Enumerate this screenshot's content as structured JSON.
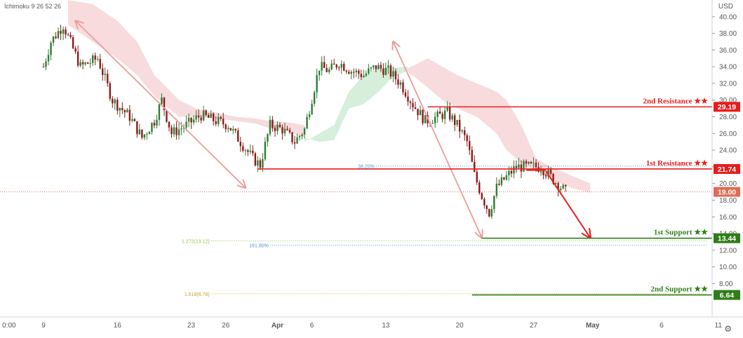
{
  "indicator_label": "Ichimoku 9 26 52 26",
  "currency": "USD",
  "icons": {
    "settings": "gear-icon"
  },
  "colors": {
    "resistance": "#e81c1c",
    "support": "#2e7d18",
    "current": "#e06b55",
    "arrow_pink": "#ef9a9a",
    "arrow_red": "#e81c1c",
    "cloud_bear": "#f3c7cb",
    "cloud_bull": "#bfe7c8",
    "candle_up": "#2e7d32",
    "candle_down": "#8b1a1a",
    "fib_green": "#8bc34a",
    "fib_blue": "#5b8fd6",
    "fib_gold": "#c9a227"
  },
  "chart_data": {
    "type": "candlestick",
    "y_axis": {
      "min": 4,
      "max": 42,
      "ticks": [
        8,
        10,
        12,
        14,
        16,
        18,
        20,
        22,
        24,
        26,
        28,
        30,
        32,
        34,
        36,
        38,
        40
      ],
      "tick_labels": [
        "8.00",
        "10.00",
        "12.00",
        "14.00",
        "16.00",
        "18.00",
        "20.00",
        "22.00",
        "24.00",
        "26.00",
        "28.00",
        "30.00",
        "32.00",
        "34.00",
        "36.00",
        "38.00",
        "40.00"
      ]
    },
    "x_axis": {
      "labels": [
        "0:00",
        "9",
        "16",
        "23",
        "26",
        "Apr",
        "6",
        "13",
        "20",
        "27",
        "May",
        "6",
        "11"
      ],
      "label_bars": [
        -14,
        0,
        30,
        60,
        74,
        95,
        109,
        139,
        169,
        199,
        223,
        251,
        274
      ],
      "bold": [
        "Apr",
        "May"
      ]
    },
    "bar_count": 220,
    "key_points": [
      [
        0,
        34.0
      ],
      [
        3,
        37.0
      ],
      [
        8,
        39.0
      ],
      [
        15,
        34.0
      ],
      [
        22,
        35.0
      ],
      [
        28,
        30.0
      ],
      [
        35,
        28.0
      ],
      [
        40,
        25.5
      ],
      [
        45,
        27.5
      ],
      [
        48,
        30.0
      ],
      [
        52,
        26.0
      ],
      [
        58,
        27.0
      ],
      [
        64,
        28.2
      ],
      [
        70,
        27.5
      ],
      [
        75,
        27.0
      ],
      [
        80,
        25.0
      ],
      [
        85,
        23.0
      ],
      [
        88,
        22.2
      ],
      [
        92,
        27.0
      ],
      [
        97,
        26.5
      ],
      [
        102,
        25.0
      ],
      [
        106,
        26.5
      ],
      [
        112,
        34.0
      ],
      [
        116,
        33.5
      ],
      [
        120,
        34.5
      ],
      [
        125,
        33.5
      ],
      [
        130,
        33.0
      ],
      [
        135,
        34.0
      ],
      [
        140,
        33.5
      ],
      [
        145,
        32.0
      ],
      [
        150,
        29.5
      ],
      [
        155,
        27.5
      ],
      [
        160,
        28.0
      ],
      [
        164,
        28.5
      ],
      [
        168,
        27.0
      ],
      [
        172,
        25.0
      ],
      [
        175,
        21.0
      ],
      [
        178,
        18.5
      ],
      [
        181,
        16.5
      ],
      [
        184,
        19.5
      ],
      [
        187,
        20.5
      ],
      [
        192,
        22.0
      ],
      [
        197,
        22.0
      ],
      [
        202,
        22.0
      ],
      [
        207,
        20.5
      ],
      [
        212,
        19.0
      ]
    ],
    "cloud_bearish": [
      [
        10,
        42.0,
        39.0
      ],
      [
        20,
        41.5,
        37.0
      ],
      [
        30,
        39.5,
        35.0
      ],
      [
        38,
        37.0,
        33.0
      ],
      [
        45,
        33.0,
        30.5
      ],
      [
        55,
        30.0,
        28.0
      ],
      [
        62,
        29.0,
        28.0
      ],
      [
        70,
        28.5,
        27.8
      ],
      [
        78,
        28.0,
        27.5
      ],
      [
        86,
        27.8,
        27.2
      ],
      [
        92,
        27.5,
        26.6
      ],
      [
        100,
        27.3,
        26.2
      ],
      [
        106,
        27.0,
        25.5
      ]
    ],
    "cloud_bullish": [
      [
        106,
        25.5,
        25.0
      ],
      [
        112,
        25.0,
        26.0
      ],
      [
        118,
        25.2,
        27.0
      ],
      [
        124,
        29.0,
        31.0
      ],
      [
        130,
        29.5,
        33.0
      ],
      [
        136,
        31.0,
        33.8
      ],
      [
        142,
        32.8,
        33.9
      ],
      [
        148,
        33.5,
        34.0
      ]
    ],
    "cloud_bearish_2": [
      [
        148,
        33.8,
        33.4
      ],
      [
        156,
        35.0,
        31.5
      ],
      [
        162,
        34.0,
        30.0
      ],
      [
        168,
        33.0,
        29.0
      ],
      [
        176,
        32.0,
        28.0
      ],
      [
        184,
        31.0,
        26.0
      ],
      [
        188,
        30.0,
        24.0
      ],
      [
        194,
        27.0,
        22.5
      ],
      [
        200,
        23.0,
        21.5
      ],
      [
        206,
        22.0,
        20.5
      ],
      [
        214,
        21.0,
        19.5
      ],
      [
        222,
        20.0,
        18.9
      ]
    ],
    "levels": [
      {
        "name": "2nd Resistance",
        "label": "2nd Resistance ★★",
        "value": 29.19,
        "tag": "29.19",
        "kind": "resistance",
        "from_bar": 156
      },
      {
        "name": "1st Resistance",
        "label": "1st Resistance ★★",
        "value": 21.74,
        "tag": "21.74",
        "kind": "resistance",
        "from_bar": 87
      },
      {
        "name": "1st Support",
        "label": "1st Support ★★",
        "value": 13.44,
        "tag": "13.44",
        "kind": "support",
        "from_bar": 178
      },
      {
        "name": "2nd Support",
        "label": "2nd Support ★★",
        "value": 6.64,
        "tag": "6.64",
        "kind": "support",
        "from_bar": 174
      }
    ],
    "current_price": {
      "value": 19.0,
      "tag": "19.00"
    },
    "fib_lines": [
      {
        "label": "38.20%",
        "value": 22.1,
        "from_bar": 135,
        "color": "fib_blue"
      },
      {
        "label": "1.272(13.12)",
        "value": 13.12,
        "from_bar": 68,
        "color": "fib_green"
      },
      {
        "label": "161.80%",
        "value": 12.6,
        "from_bar": 92,
        "color": "fib_blue"
      },
      {
        "label": "1.618(6.78)",
        "value": 6.78,
        "from_bar": 68,
        "color": "fib_gold"
      }
    ],
    "arrows": [
      {
        "name": "arrow-1",
        "from": [
          13,
          39.5
        ],
        "to": [
          82,
          19.5
        ],
        "double": true,
        "color": "arrow_pink"
      },
      {
        "name": "arrow-2",
        "from": [
          142,
          37.0
        ],
        "to": [
          178,
          13.5
        ],
        "double": true,
        "color": "arrow_pink"
      },
      {
        "name": "arrow-3",
        "from": [
          204,
          21.5
        ],
        "to": [
          222,
          13.5
        ],
        "double": false,
        "color": "arrow_red"
      }
    ]
  }
}
